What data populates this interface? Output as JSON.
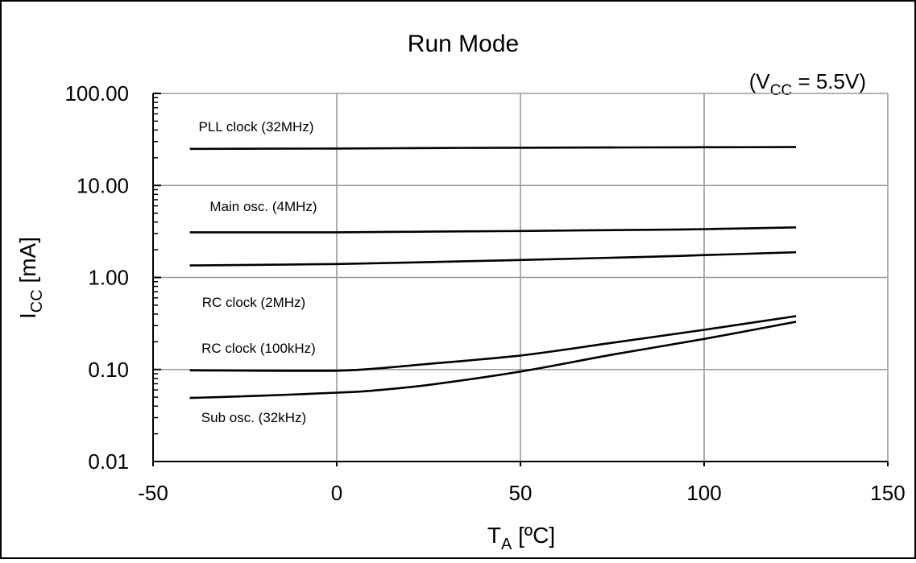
{
  "chart_data": {
    "type": "line",
    "title": "Run Mode",
    "annotation": {
      "prefix": "(V",
      "sub": "CC",
      "suffix": " = 5.5V)"
    },
    "xlabel": {
      "main": "T",
      "sub": "A",
      "suffix": " [ºC]"
    },
    "ylabel": {
      "main": "I",
      "sub": "CC",
      "suffix": " [mA]"
    },
    "x_scale": "linear",
    "y_scale": "log",
    "xlim": [
      -50,
      150
    ],
    "ylim": [
      0.01,
      100
    ],
    "x_ticks": [
      -50,
      0,
      50,
      100,
      150
    ],
    "x_tick_labels": [
      "-50",
      "0",
      "50",
      "100",
      "150"
    ],
    "y_ticks": [
      0.01,
      0.1,
      1,
      10,
      100
    ],
    "y_tick_labels": [
      "0.01",
      "0.10",
      "1.00",
      "10.00",
      "100.00"
    ],
    "grid": true,
    "series": [
      {
        "name": "PLL clock (32MHz)",
        "x": [
          -40,
          0,
          25,
          50,
          85,
          100,
          125
        ],
        "y": [
          25.0,
          25.2,
          25.5,
          25.7,
          25.9,
          26.0,
          26.1
        ]
      },
      {
        "name": "Main osc. (4MHz)",
        "x": [
          -40,
          0,
          25,
          50,
          85,
          100,
          125
        ],
        "y": [
          3.1,
          3.1,
          3.15,
          3.2,
          3.3,
          3.35,
          3.5
        ]
      },
      {
        "name": "RC clock (2MHz)",
        "x": [
          -40,
          0,
          25,
          50,
          85,
          100,
          125
        ],
        "y": [
          1.35,
          1.4,
          1.47,
          1.55,
          1.68,
          1.75,
          1.88
        ]
      },
      {
        "name": "RC clock (100kHz)",
        "x": [
          -40,
          -20,
          0,
          10,
          25,
          50,
          75,
          100,
          125
        ],
        "y": [
          0.098,
          0.097,
          0.097,
          0.102,
          0.115,
          0.142,
          0.195,
          0.27,
          0.38
        ]
      },
      {
        "name": "Sub osc. (32kHz)",
        "x": [
          -40,
          -20,
          0,
          10,
          25,
          50,
          75,
          100,
          125
        ],
        "y": [
          0.049,
          0.052,
          0.056,
          0.059,
          0.068,
          0.095,
          0.145,
          0.215,
          0.33
        ]
      }
    ],
    "legend": "inline labels"
  }
}
